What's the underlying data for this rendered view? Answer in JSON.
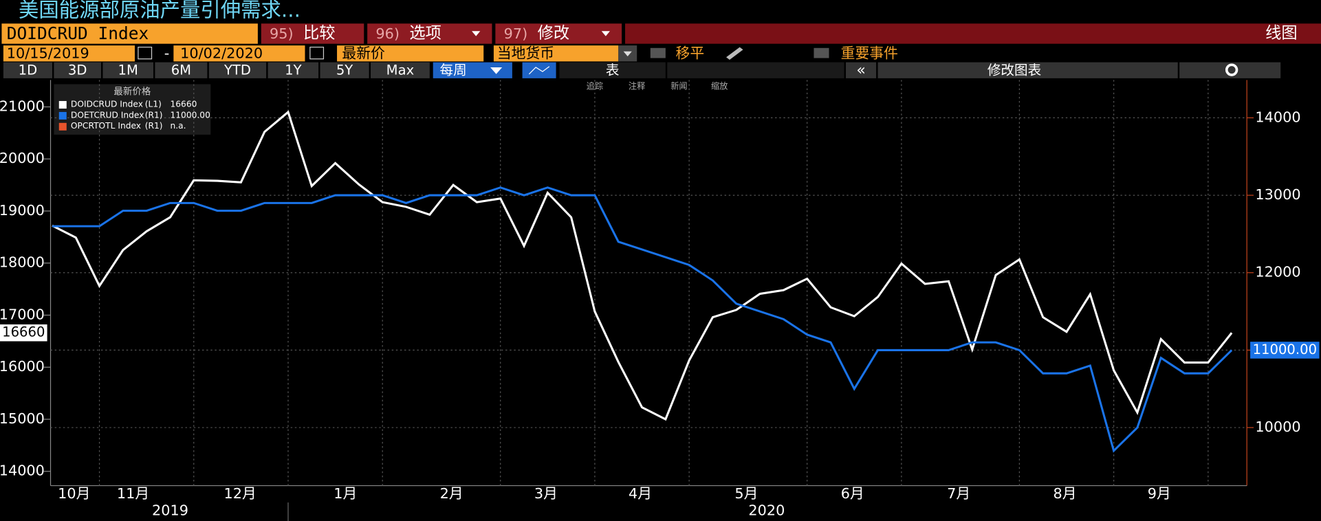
{
  "header": {
    "title": "美国能源部原油产量引伸需求...",
    "ticker": "DOIDCRUD Index",
    "buttons": [
      {
        "num": "95)",
        "label": "比较"
      },
      {
        "num": "96)",
        "label": "选项"
      },
      {
        "num": "97)",
        "label": "修改"
      }
    ],
    "view": "线图",
    "date_from": "10/15/2019",
    "date_sep": "-",
    "date_to": "10/02/2020",
    "field": "最新价",
    "currency": "当地货币",
    "moving_avg": "移平",
    "events": "重要事件",
    "periods": [
      "1D",
      "3D",
      "1M",
      "6M",
      "YTD",
      "1Y",
      "5Y",
      "Max"
    ],
    "frequency": "每周",
    "table": "表",
    "edit_chart": "修改图表",
    "tools": [
      "追踪",
      "注释",
      "新闻",
      "缩放"
    ],
    "legend_title": "最新价格"
  },
  "chart_data": {
    "type": "line",
    "months": [
      "10月",
      "11月",
      "12月",
      "1月",
      "2月",
      "3月",
      "4月",
      "5月",
      "6月",
      "7月",
      "8月",
      "9月"
    ],
    "years": [
      "2019",
      "2020"
    ],
    "ylim": [
      13725,
      21517
    ],
    "yticks": [
      14000,
      15000,
      16000,
      17000,
      18000,
      19000,
      20000,
      21000
    ],
    "y2lim": [
      9250,
      14489
    ],
    "y2ticks": [
      10000,
      11000,
      12000,
      13000,
      14000
    ],
    "grid": true,
    "series": [
      {
        "name": "DOIDCRUD Index",
        "axis_label": "(L1)",
        "color": "#ffffff",
        "values": [
          18720,
          18490,
          17560,
          18250,
          18610,
          18880,
          19590,
          19580,
          19550,
          20520,
          20900,
          19480,
          19920,
          19510,
          19170,
          19080,
          18930,
          19500,
          19170,
          19240,
          18330,
          19350,
          18880,
          17070,
          16100,
          15230,
          15000,
          16130,
          16960,
          17100,
          17410,
          17480,
          17700,
          17150,
          16980,
          17350,
          17990,
          17600,
          17650,
          16340,
          17770,
          18070,
          16960,
          16680,
          17400,
          15940,
          15130,
          16540,
          16090,
          16090,
          16660
        ]
      },
      {
        "name": "DOETCRUD Index",
        "axis_label": "(R1)",
        "axis": "y2",
        "last_label": "11000.00",
        "color": "#1a73e8",
        "values": [
          12600,
          12600,
          12600,
          12800,
          12800,
          12900,
          12900,
          12800,
          12800,
          12900,
          12900,
          12900,
          13000,
          13000,
          13000,
          12900,
          13000,
          13000,
          13000,
          13100,
          13000,
          13100,
          13000,
          13000,
          12400,
          12300,
          12200,
          12100,
          11900,
          11600,
          11500,
          11400,
          11200,
          11100,
          10500,
          11000,
          11000,
          11000,
          11000,
          11100,
          11100,
          11000,
          10700,
          10700,
          10800,
          9700,
          10000,
          10900,
          10700,
          10700,
          11000
        ]
      },
      {
        "name": "OPCRTOTL Index",
        "axis_label": "(R1)",
        "axis": "y2",
        "last_label": "n.a.",
        "color": "#e8542c",
        "values": []
      }
    ]
  }
}
